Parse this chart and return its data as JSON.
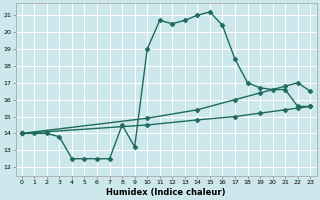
{
  "xlabel": "Humidex (Indice chaleur)",
  "xlim": [
    -0.5,
    23.5
  ],
  "ylim": [
    11.5,
    21.7
  ],
  "yticks": [
    12,
    13,
    14,
    15,
    16,
    17,
    18,
    19,
    20,
    21
  ],
  "xticks": [
    0,
    1,
    2,
    3,
    4,
    5,
    6,
    7,
    8,
    9,
    10,
    11,
    12,
    13,
    14,
    15,
    16,
    17,
    18,
    19,
    20,
    21,
    22,
    23
  ],
  "bg_color": "#cce8ec",
  "line_color": "#1e6b5e",
  "grid_color": "#ffffff",
  "line1_x": [
    0,
    1,
    2,
    3,
    4,
    5,
    6,
    7,
    8,
    9,
    10,
    11,
    12,
    13,
    14,
    15,
    16,
    17,
    18,
    19,
    20,
    21,
    22,
    23
  ],
  "line1_y": [
    14.0,
    14.0,
    14.0,
    13.8,
    12.5,
    12.5,
    12.5,
    12.5,
    14.5,
    13.2,
    19.0,
    20.7,
    20.5,
    20.7,
    21.0,
    21.2,
    20.4,
    18.4,
    17.0,
    16.7,
    16.6,
    16.6,
    15.6,
    15.6
  ],
  "line2_x": [
    0,
    10,
    14,
    17,
    19,
    21,
    22,
    23
  ],
  "line2_y": [
    14.0,
    14.9,
    15.4,
    16.0,
    16.4,
    16.8,
    17.0,
    16.5
  ],
  "line3_x": [
    0,
    10,
    14,
    17,
    19,
    21,
    22,
    23
  ],
  "line3_y": [
    14.0,
    14.5,
    14.8,
    15.0,
    15.2,
    15.4,
    15.5,
    15.6
  ],
  "markersize": 2.5,
  "linewidth": 1.0
}
